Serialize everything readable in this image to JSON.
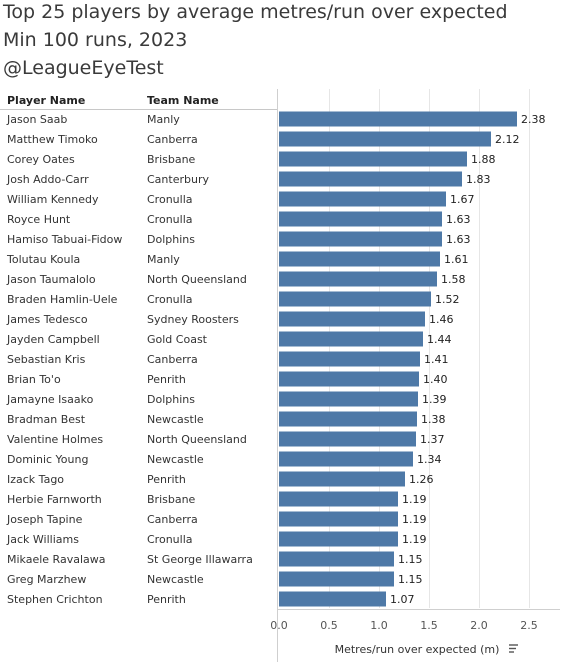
{
  "title": {
    "line1": "Top 25 players by average metres/run over expected",
    "line2": "Min 100 runs, 2023",
    "line3": "@LeagueEyeTest"
  },
  "columns": {
    "player": "Player Name",
    "team": "Team Name"
  },
  "colors": {
    "bar": "#4e79a7",
    "grid": "#e6e6e6"
  },
  "chart_data": {
    "type": "bar",
    "orientation": "horizontal",
    "xlabel": "Metres/run over expected (m)",
    "xlim": [
      0,
      2.7
    ],
    "xticks": [
      "0.0",
      "0.5",
      "1.0",
      "1.5",
      "2.0",
      "2.5"
    ],
    "grid": true,
    "rows": [
      {
        "player": "Jason Saab",
        "team": "Manly",
        "value": 2.38
      },
      {
        "player": "Matthew Timoko",
        "team": "Canberra",
        "value": 2.12
      },
      {
        "player": "Corey Oates",
        "team": "Brisbane",
        "value": 1.88
      },
      {
        "player": "Josh Addo-Carr",
        "team": "Canterbury",
        "value": 1.83
      },
      {
        "player": "William Kennedy",
        "team": "Cronulla",
        "value": 1.67
      },
      {
        "player": "Royce Hunt",
        "team": "Cronulla",
        "value": 1.63
      },
      {
        "player": "Hamiso Tabuai-Fidow",
        "team": "Dolphins",
        "value": 1.63
      },
      {
        "player": "Tolutau Koula",
        "team": "Manly",
        "value": 1.61
      },
      {
        "player": "Jason Taumalolo",
        "team": "North Queensland",
        "value": 1.58
      },
      {
        "player": "Braden Hamlin-Uele",
        "team": "Cronulla",
        "value": 1.52
      },
      {
        "player": "James Tedesco",
        "team": "Sydney Roosters",
        "value": 1.46
      },
      {
        "player": "Jayden Campbell",
        "team": "Gold Coast",
        "value": 1.44
      },
      {
        "player": "Sebastian Kris",
        "team": "Canberra",
        "value": 1.41
      },
      {
        "player": "Brian To'o",
        "team": "Penrith",
        "value": 1.4
      },
      {
        "player": "Jamayne Isaako",
        "team": "Dolphins",
        "value": 1.39
      },
      {
        "player": "Bradman Best",
        "team": "Newcastle",
        "value": 1.38
      },
      {
        "player": "Valentine Holmes",
        "team": "North Queensland",
        "value": 1.37
      },
      {
        "player": "Dominic Young",
        "team": "Newcastle",
        "value": 1.34
      },
      {
        "player": "Izack Tago",
        "team": "Penrith",
        "value": 1.26
      },
      {
        "player": "Herbie Farnworth",
        "team": "Brisbane",
        "value": 1.19
      },
      {
        "player": "Joseph Tapine",
        "team": "Canberra",
        "value": 1.19
      },
      {
        "player": "Jack Williams",
        "team": "Cronulla",
        "value": 1.19
      },
      {
        "player": "Mikaele Ravalawa",
        "team": "St George Illawarra",
        "value": 1.15
      },
      {
        "player": "Greg Marzhew",
        "team": "Newcastle",
        "value": 1.15
      },
      {
        "player": "Stephen Crichton",
        "team": "Penrith",
        "value": 1.07
      }
    ]
  }
}
